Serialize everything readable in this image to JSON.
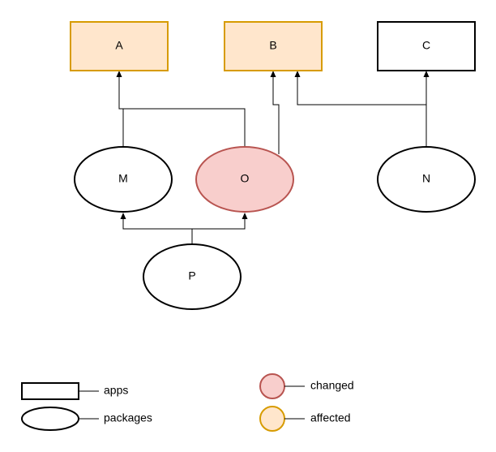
{
  "colors": {
    "stroke_default": "#000000",
    "fill_default": "#ffffff",
    "changed_fill": "#f8cecc",
    "changed_stroke": "#b85450",
    "affected_fill": "#ffe6cc",
    "affected_stroke": "#d79b00"
  },
  "nodes": {
    "A": {
      "label": "A",
      "kind": "app",
      "status": "affected"
    },
    "B": {
      "label": "B",
      "kind": "app",
      "status": "affected"
    },
    "C": {
      "label": "C",
      "kind": "app",
      "status": "none"
    },
    "M": {
      "label": "M",
      "kind": "package",
      "status": "none"
    },
    "O": {
      "label": "O",
      "kind": "package",
      "status": "changed"
    },
    "N": {
      "label": "N",
      "kind": "package",
      "status": "none"
    },
    "P": {
      "label": "P",
      "kind": "package",
      "status": "none"
    }
  },
  "edges": [
    {
      "from": "M",
      "to": "A"
    },
    {
      "from": "O",
      "to": "A"
    },
    {
      "from": "O",
      "to": "B"
    },
    {
      "from": "N",
      "to": "B"
    },
    {
      "from": "N",
      "to": "C"
    },
    {
      "from": "P",
      "to": "M"
    },
    {
      "from": "P",
      "to": "O"
    }
  ],
  "legend": {
    "apps": "apps",
    "packages": "packages",
    "changed": "changed",
    "affected": "affected"
  }
}
